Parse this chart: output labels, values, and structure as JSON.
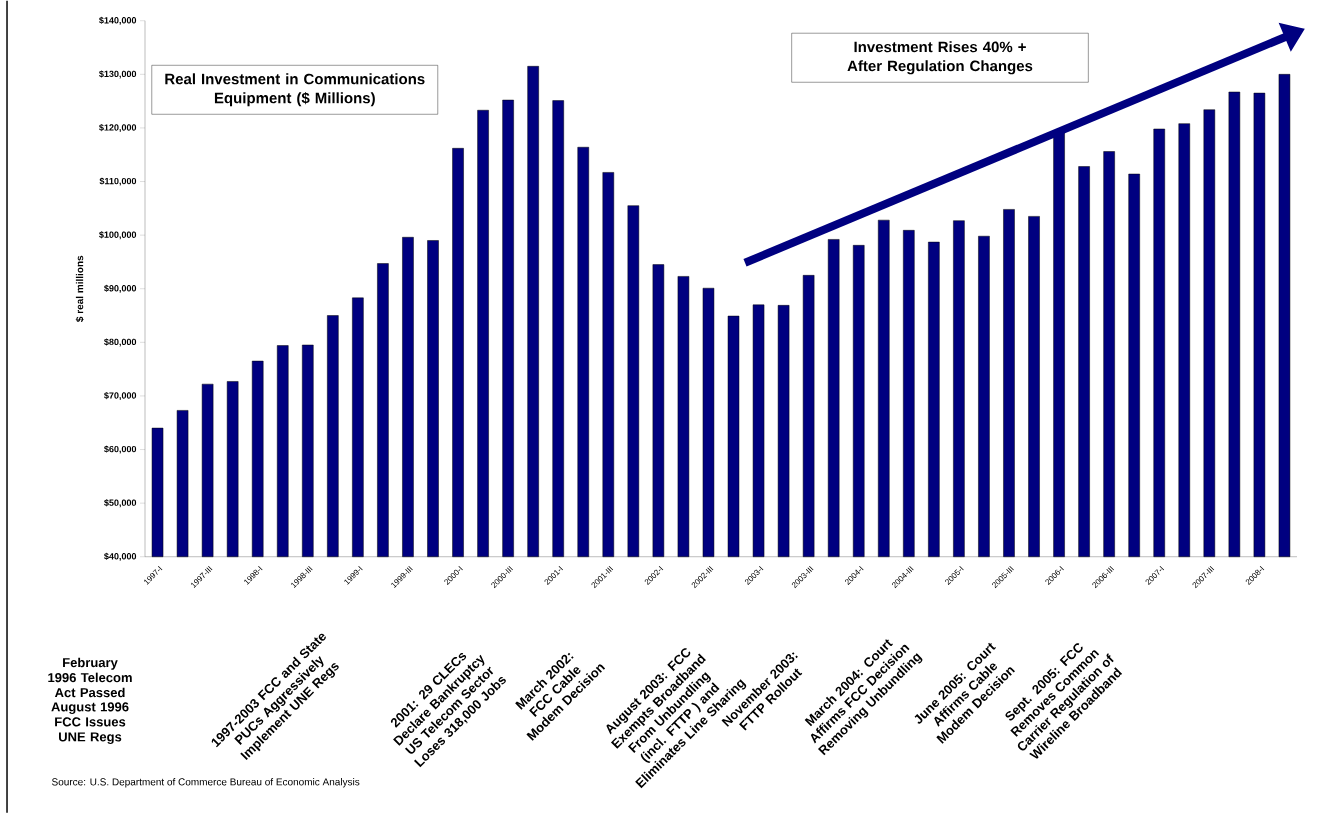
{
  "chart_data": {
    "type": "bar",
    "title": "Real Investment in Communications Equipment  ($ Millions)",
    "ylabel": "$ real millions",
    "color": "#000080",
    "categories": [
      "1997-I",
      null,
      "1997-III",
      null,
      "1998-I",
      null,
      "1998-III",
      null,
      "1999-I",
      null,
      "1999-III",
      null,
      "2000-I",
      null,
      "2000-III",
      null,
      "2001-I",
      null,
      "2001-III",
      null,
      "2002-I",
      null,
      "2002-III",
      null,
      "2003-I",
      null,
      "2003-III",
      null,
      "2004-I",
      null,
      "2004-III",
      null,
      "2005-I",
      null,
      "2005-III",
      null,
      "2006-I",
      null,
      "2006-III",
      null,
      "2007-I",
      null,
      "2007-III",
      null,
      "2008-I",
      null
    ],
    "values": [
      64000,
      67300,
      72200,
      72700,
      76500,
      79400,
      79500,
      85000,
      88300,
      94700,
      99600,
      99000,
      116200,
      123300,
      125200,
      131500,
      125100,
      116400,
      111700,
      105500,
      94500,
      92300,
      90100,
      84900,
      87000,
      86900,
      92500,
      99200,
      98100,
      102800,
      100900,
      98700,
      102700,
      99800,
      104800,
      103500,
      119100,
      112800,
      115600,
      111400,
      119800,
      120800,
      123400,
      126700,
      126500,
      130000
    ],
    "ylim": [
      40000,
      140000
    ],
    "yticks": [
      {
        "value": 40000,
        "label": "$40,000"
      },
      {
        "value": 50000,
        "label": "$50,000"
      },
      {
        "value": 60000,
        "label": "$60,000"
      },
      {
        "value": 70000,
        "label": "$70,000"
      },
      {
        "value": 80000,
        "label": "$80,000"
      },
      {
        "value": 90000,
        "label": "$90,000"
      },
      {
        "value": 100000,
        "label": "$100,000"
      },
      {
        "value": 110000,
        "label": "$110,000"
      },
      {
        "value": 120000,
        "label": "$120,000"
      },
      {
        "value": 130000,
        "label": "$130,000"
      },
      {
        "value": 140000,
        "label": "$140,000"
      }
    ],
    "annotations": [
      "February 1996 Telecom Act Passed",
      "August 1996 FCC Issues UNE Regs",
      "1997-2003 FCC and State PUCs Aggressively Implement UNE Regs",
      "2001: 29 CLECs Declare Bankruptcy US Telecom Sector Loses 318,000 Jobs",
      "March 2002: FCC Cable Modem Decision",
      "August 2003: FCC Exempts Broadband From Unbundling (incl. FTTP ) and Eliminates Line Sharing",
      "November 2003: FTTP Rollout",
      "March 2004: Court Affirms FCC Decision Removing Unbundling",
      "June 2005: Court Affirms Cable Modem Decision",
      "Sept. 2005:  FCC Removes Common Carrier Regulation of Wireline Broadband",
      "Investment Rises 40% + After Regulation Changes",
      "Source:  U.S. Department of Commerce Bureau of Economic Analysis"
    ]
  }
}
